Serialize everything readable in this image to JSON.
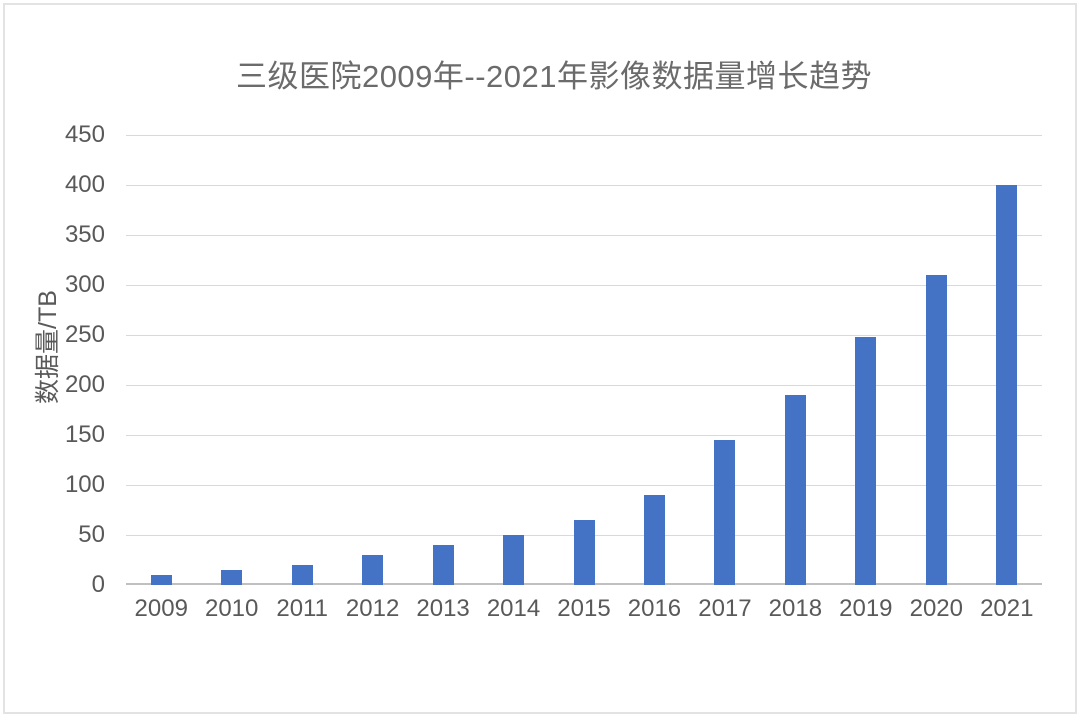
{
  "page": {
    "background": "#ffffff",
    "border_color": "#e3e3e3"
  },
  "chart_data": {
    "type": "bar",
    "title": "三级医院2009年--2021年影像数据量增长趋势",
    "xlabel": "",
    "ylabel": "数据量/TB",
    "categories": [
      "2009",
      "2010",
      "2011",
      "2012",
      "2013",
      "2014",
      "2015",
      "2016",
      "2017",
      "2018",
      "2019",
      "2020",
      "2021"
    ],
    "values": [
      10,
      15,
      20,
      30,
      40,
      50,
      65,
      90,
      145,
      190,
      248,
      310,
      400
    ],
    "unit": "TB",
    "ylim": [
      0,
      450
    ],
    "yticks": [
      0,
      50,
      100,
      150,
      200,
      250,
      300,
      350,
      400,
      450
    ],
    "grid": "horizontal",
    "legend": "none",
    "colors": {
      "bar": "#4472C4",
      "gridline": "#d9d9d9",
      "axis_line": "#c0c0c0",
      "tick_text": "#595959",
      "title_text": "#6b6b6b"
    }
  }
}
